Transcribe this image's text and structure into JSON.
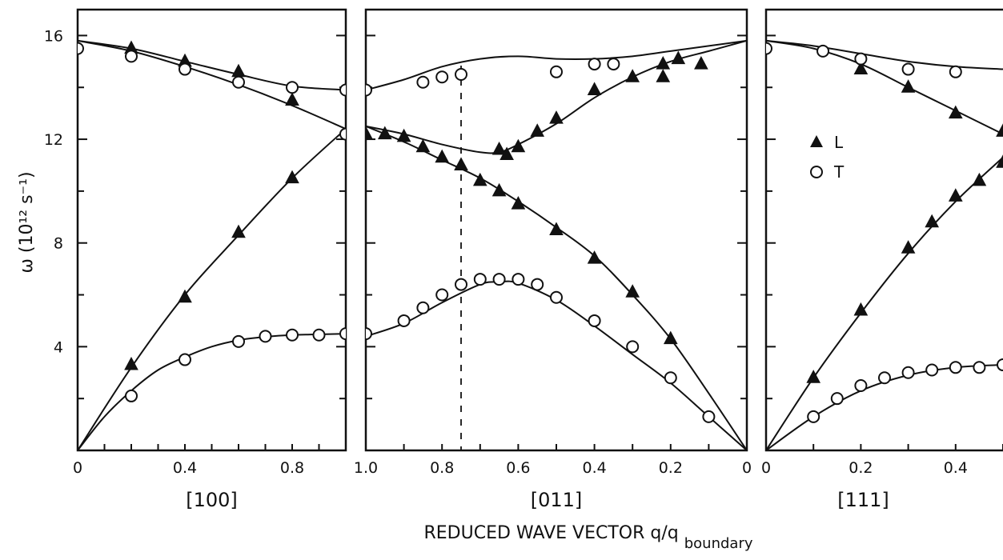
{
  "chart_data": {
    "type": "scatter",
    "ylabel": "ω (10¹² s⁻¹)",
    "xlabel": "REDUCED WAVE VECTOR q/q_boundary",
    "xlabel_main": "REDUCED WAVE VECTOR q/q",
    "xlabel_sub": "boundary",
    "ylim": [
      0,
      17
    ],
    "yticks": [
      "4",
      "8",
      "12",
      "16"
    ],
    "legend": {
      "placement": "inside-right-panel",
      "entries": [
        {
          "marker": "filled-triangle",
          "label": "L"
        },
        {
          "marker": "open-circle",
          "label": "T"
        }
      ]
    },
    "panels": [
      {
        "direction": "[100]",
        "xlim": [
          0,
          1.0
        ],
        "xticks": [
          {
            "value": 0,
            "label": "0"
          },
          {
            "value": 0.4,
            "label": "0.4"
          },
          {
            "value": 0.8,
            "label": "0.8"
          }
        ],
        "series": [
          {
            "label": "L",
            "marker": "triangle",
            "points": [
              [
                0.2,
                3.3
              ],
              [
                0.4,
                5.9
              ],
              [
                0.6,
                8.4
              ],
              [
                0.8,
                10.5
              ],
              [
                0.2,
                15.5
              ],
              [
                0.4,
                15.0
              ],
              [
                0.6,
                14.6
              ],
              [
                0.8,
                13.5
              ]
            ]
          },
          {
            "label": "T",
            "marker": "circle",
            "points": [
              [
                0,
                15.5
              ],
              [
                0.2,
                15.2
              ],
              [
                0.4,
                14.7
              ],
              [
                0.6,
                14.2
              ],
              [
                0.8,
                14.0
              ],
              [
                1.0,
                13.9
              ],
              [
                1.0,
                12.2
              ],
              [
                0.2,
                2.1
              ],
              [
                0.4,
                3.5
              ],
              [
                0.6,
                4.2
              ],
              [
                0.7,
                4.4
              ],
              [
                0.8,
                4.45
              ],
              [
                0.9,
                4.45
              ],
              [
                1.0,
                4.5
              ]
            ]
          }
        ],
        "curves": [
          {
            "points": [
              [
                0,
                15.8
              ],
              [
                0.2,
                15.5
              ],
              [
                0.4,
                15.0
              ],
              [
                0.6,
                14.5
              ],
              [
                0.8,
                14.05
              ],
              [
                1.0,
                13.9
              ]
            ]
          },
          {
            "points": [
              [
                0,
                15.8
              ],
              [
                0.2,
                15.4
              ],
              [
                0.4,
                14.8
              ],
              [
                0.6,
                14.1
              ],
              [
                0.8,
                13.3
              ],
              [
                1.0,
                12.4
              ]
            ]
          },
          {
            "points": [
              [
                0,
                0
              ],
              [
                0.2,
                3.2
              ],
              [
                0.4,
                6.0
              ],
              [
                0.6,
                8.3
              ],
              [
                0.8,
                10.5
              ],
              [
                1.0,
                12.4
              ]
            ]
          },
          {
            "points": [
              [
                0,
                0
              ],
              [
                0.1,
                1.3
              ],
              [
                0.2,
                2.3
              ],
              [
                0.3,
                3.1
              ],
              [
                0.4,
                3.6
              ],
              [
                0.5,
                4.0
              ],
              [
                0.6,
                4.25
              ],
              [
                0.7,
                4.38
              ],
              [
                0.8,
                4.45
              ],
              [
                1.0,
                4.5
              ]
            ]
          }
        ]
      },
      {
        "direction": "[011]",
        "xlim": [
          1.0,
          0
        ],
        "xticks": [
          {
            "value": 1.0,
            "label": "1.0"
          },
          {
            "value": 0.8,
            "label": "0.8"
          },
          {
            "value": 0.6,
            "label": "0.6"
          },
          {
            "value": 0.4,
            "label": "0.4"
          },
          {
            "value": 0.2,
            "label": "0.2"
          },
          {
            "value": 0,
            "label": "0"
          }
        ],
        "dashed_line_x": 0.75,
        "series": [
          {
            "label": "L",
            "marker": "triangle",
            "points": [
              [
                1.0,
                12.2
              ],
              [
                0.95,
                12.2
              ],
              [
                0.9,
                12.1
              ],
              [
                0.85,
                11.7
              ],
              [
                0.8,
                11.3
              ],
              [
                0.75,
                11.0
              ],
              [
                0.7,
                10.4
              ],
              [
                0.65,
                10.0
              ],
              [
                0.6,
                9.5
              ],
              [
                0.5,
                8.5
              ],
              [
                0.4,
                7.4
              ],
              [
                0.3,
                6.1
              ],
              [
                0.2,
                4.3
              ],
              [
                0.65,
                11.6
              ],
              [
                0.63,
                11.4
              ],
              [
                0.6,
                11.7
              ],
              [
                0.55,
                12.3
              ],
              [
                0.5,
                12.8
              ],
              [
                0.4,
                13.9
              ],
              [
                0.3,
                14.4
              ],
              [
                0.22,
                14.4
              ],
              [
                0.22,
                14.9
              ],
              [
                0.18,
                15.1
              ],
              [
                0.12,
                14.9
              ]
            ]
          },
          {
            "label": "T",
            "marker": "circle",
            "points": [
              [
                1.0,
                13.9
              ],
              [
                0.85,
                14.2
              ],
              [
                0.8,
                14.4
              ],
              [
                0.75,
                14.5
              ],
              [
                0.5,
                14.6
              ],
              [
                0.4,
                14.9
              ],
              [
                0.35,
                14.9
              ],
              [
                1.0,
                4.5
              ],
              [
                0.9,
                5.0
              ],
              [
                0.85,
                5.5
              ],
              [
                0.8,
                6.0
              ],
              [
                0.75,
                6.4
              ],
              [
                0.7,
                6.6
              ],
              [
                0.65,
                6.6
              ],
              [
                0.6,
                6.6
              ],
              [
                0.55,
                6.4
              ],
              [
                0.5,
                5.9
              ],
              [
                0.4,
                5.0
              ],
              [
                0.3,
                4.0
              ],
              [
                0.2,
                2.8
              ],
              [
                0.1,
                1.3
              ]
            ]
          }
        ],
        "curves": [
          {
            "points": [
              [
                1.0,
                13.9
              ],
              [
                0.9,
                14.3
              ],
              [
                0.8,
                14.8
              ],
              [
                0.7,
                15.1
              ],
              [
                0.6,
                15.2
              ],
              [
                0.5,
                15.1
              ],
              [
                0.4,
                15.1
              ],
              [
                0.3,
                15.2
              ],
              [
                0.2,
                15.4
              ],
              [
                0.1,
                15.6
              ],
              [
                0,
                15.8
              ]
            ]
          },
          {
            "points": [
              [
                1.0,
                12.5
              ],
              [
                0.9,
                12.2
              ],
              [
                0.8,
                11.8
              ],
              [
                0.7,
                11.5
              ],
              [
                0.65,
                11.5
              ],
              [
                0.6,
                11.8
              ],
              [
                0.5,
                12.6
              ],
              [
                0.4,
                13.6
              ],
              [
                0.3,
                14.4
              ],
              [
                0.2,
                15.0
              ],
              [
                0.1,
                15.4
              ],
              [
                0,
                15.8
              ]
            ]
          },
          {
            "points": [
              [
                1.0,
                12.5
              ],
              [
                0.9,
                11.9
              ],
              [
                0.8,
                11.2
              ],
              [
                0.7,
                10.5
              ],
              [
                0.6,
                9.6
              ],
              [
                0.5,
                8.6
              ],
              [
                0.4,
                7.5
              ],
              [
                0.3,
                6.0
              ],
              [
                0.2,
                4.3
              ],
              [
                0.1,
                2.2
              ],
              [
                0,
                0
              ]
            ]
          },
          {
            "points": [
              [
                1.0,
                4.4
              ],
              [
                0.9,
                4.9
              ],
              [
                0.8,
                5.7
              ],
              [
                0.7,
                6.4
              ],
              [
                0.65,
                6.5
              ],
              [
                0.6,
                6.45
              ],
              [
                0.5,
                5.8
              ],
              [
                0.4,
                4.8
              ],
              [
                0.3,
                3.7
              ],
              [
                0.2,
                2.6
              ],
              [
                0.1,
                1.3
              ],
              [
                0,
                0
              ]
            ]
          }
        ]
      },
      {
        "direction": "[111]",
        "xlim": [
          0,
          0.5
        ],
        "xticks": [
          {
            "value": 0,
            "label": "0"
          },
          {
            "value": 0.2,
            "label": "0.2"
          },
          {
            "value": 0.4,
            "label": "0.4"
          }
        ],
        "series": [
          {
            "label": "L",
            "marker": "triangle",
            "points": [
              [
                0.2,
                14.7
              ],
              [
                0.3,
                14.0
              ],
              [
                0.4,
                13.0
              ],
              [
                0.5,
                12.3
              ],
              [
                0.1,
                2.8
              ],
              [
                0.2,
                5.4
              ],
              [
                0.3,
                7.8
              ],
              [
                0.35,
                8.8
              ],
              [
                0.4,
                9.8
              ],
              [
                0.45,
                10.4
              ],
              [
                0.5,
                11.1
              ]
            ]
          },
          {
            "label": "T",
            "marker": "circle",
            "points": [
              [
                0,
                15.5
              ],
              [
                0.12,
                15.4
              ],
              [
                0.2,
                15.1
              ],
              [
                0.3,
                14.7
              ],
              [
                0.4,
                14.6
              ],
              [
                0.1,
                1.3
              ],
              [
                0.15,
                2.0
              ],
              [
                0.2,
                2.5
              ],
              [
                0.25,
                2.8
              ],
              [
                0.3,
                3.0
              ],
              [
                0.35,
                3.1
              ],
              [
                0.4,
                3.2
              ],
              [
                0.45,
                3.2
              ],
              [
                0.5,
                3.3
              ]
            ]
          }
        ],
        "curves": [
          {
            "points": [
              [
                0,
                15.8
              ],
              [
                0.1,
                15.6
              ],
              [
                0.2,
                15.3
              ],
              [
                0.3,
                15.0
              ],
              [
                0.4,
                14.8
              ],
              [
                0.5,
                14.7
              ]
            ]
          },
          {
            "points": [
              [
                0,
                15.8
              ],
              [
                0.1,
                15.5
              ],
              [
                0.2,
                14.9
              ],
              [
                0.3,
                14.0
              ],
              [
                0.4,
                13.1
              ],
              [
                0.5,
                12.2
              ]
            ]
          },
          {
            "points": [
              [
                0,
                0
              ],
              [
                0.1,
                2.8
              ],
              [
                0.2,
                5.3
              ],
              [
                0.3,
                7.6
              ],
              [
                0.4,
                9.6
              ],
              [
                0.5,
                11.3
              ]
            ]
          },
          {
            "points": [
              [
                0,
                0
              ],
              [
                0.1,
                1.3
              ],
              [
                0.2,
                2.3
              ],
              [
                0.3,
                2.9
              ],
              [
                0.4,
                3.2
              ],
              [
                0.5,
                3.3
              ]
            ]
          }
        ]
      }
    ]
  }
}
